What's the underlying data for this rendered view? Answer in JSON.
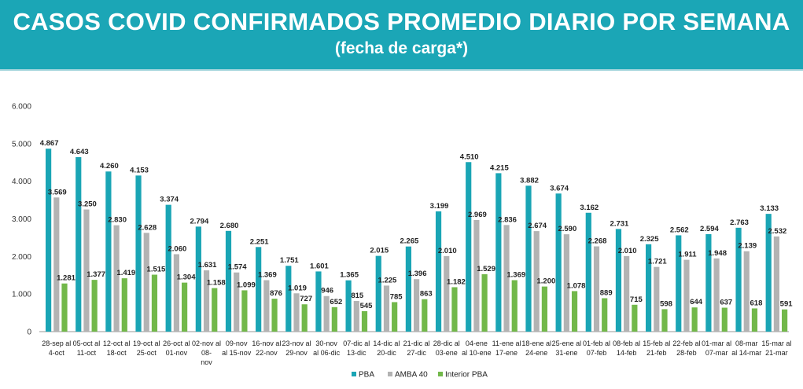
{
  "header": {
    "title": "CASOS COVID CONFIRMADOS PROMEDIO DIARIO POR SEMANA",
    "subtitle": "(fecha de carga*)"
  },
  "chart_data": {
    "type": "bar",
    "title": "CASOS COVID CONFIRMADOS PROMEDIO DIARIO POR SEMANA",
    "subtitle": "(fecha de carga*)",
    "xlabel": "",
    "ylabel": "",
    "ylim": [
      0,
      6000
    ],
    "yticks": [
      "0",
      "1.000",
      "2.000",
      "3.000",
      "4.000",
      "5.000",
      "6.000"
    ],
    "ytick_values": [
      0,
      1000,
      2000,
      3000,
      4000,
      5000,
      6000
    ],
    "categories": [
      [
        "28-sep al",
        "4-oct"
      ],
      [
        "05-oct al",
        "11-oct"
      ],
      [
        "12-oct al",
        "18-oct"
      ],
      [
        "19-oct al",
        "25-oct"
      ],
      [
        "26-oct al",
        "01-nov"
      ],
      [
        "02-nov al",
        "08-",
        "nov"
      ],
      [
        "09-nov",
        "al 15-nov"
      ],
      [
        "16-nov al",
        "22-nov"
      ],
      [
        "23-nov al",
        "29-nov"
      ],
      [
        "30-nov",
        "al 06-dic"
      ],
      [
        "07-dic al",
        "13-dic"
      ],
      [
        "14-dic al",
        "20-dic"
      ],
      [
        "21-dic al",
        "27-dic"
      ],
      [
        "28-dic al",
        "03-ene"
      ],
      [
        "04-ene",
        "al 10-ene"
      ],
      [
        "11-ene al",
        "17-ene"
      ],
      [
        "18-ene al",
        "24-ene"
      ],
      [
        "25-ene al",
        "31-ene"
      ],
      [
        "01-feb al",
        "07-feb"
      ],
      [
        "08-feb al",
        "14-feb"
      ],
      [
        "15-feb al",
        "21-feb"
      ],
      [
        "22-feb al",
        "28-feb"
      ],
      [
        "01-mar al",
        "07-mar"
      ],
      [
        "08-mar",
        "al 14-mar"
      ],
      [
        "15-mar al",
        "21-mar"
      ]
    ],
    "series": [
      {
        "name": "PBA",
        "color": "#1aa5b5",
        "values": [
          4867,
          4643,
          4260,
          4153,
          3374,
          2794,
          2680,
          2251,
          1751,
          1601,
          1365,
          2015,
          2265,
          3199,
          4510,
          4215,
          3882,
          3674,
          3162,
          2731,
          2325,
          2562,
          2594,
          2763,
          3133
        ],
        "labels": [
          "4.867",
          "4.643",
          "4.260",
          "4.153",
          "3.374",
          "2.794",
          "2.680",
          "2.251",
          "1.751",
          "1.601",
          "1.365",
          "2.015",
          "2.265",
          "3.199",
          "4.510",
          "4.215",
          "3.882",
          "3.674",
          "3.162",
          "2.731",
          "2.325",
          "2.562",
          "2.594",
          "2.763",
          "3.133"
        ]
      },
      {
        "name": "AMBA 40",
        "color": "#b3b3b3",
        "values": [
          3569,
          3250,
          2830,
          2628,
          2060,
          1631,
          1574,
          1369,
          1019,
          946,
          815,
          1225,
          1396,
          2010,
          2969,
          2836,
          2674,
          2590,
          2268,
          2010,
          1721,
          1911,
          1948,
          2139,
          2532
        ],
        "labels": [
          "3.569",
          "3.250",
          "2.830",
          "2.628",
          "2.060",
          "1.631",
          "1.574",
          "1.369",
          "1.019",
          "946",
          "815",
          "1.225",
          "1.396",
          "2.010",
          "2.969",
          "2.836",
          "2.674",
          "2.590",
          "2.268",
          "2.010",
          "1.721",
          "1.911",
          "1.948",
          "2.139",
          "2.532"
        ]
      },
      {
        "name": "Interior PBA",
        "color": "#72b84a",
        "values": [
          1281,
          1377,
          1419,
          1515,
          1304,
          1158,
          1099,
          876,
          727,
          652,
          545,
          785,
          863,
          1182,
          1529,
          1369,
          1200,
          1078,
          889,
          715,
          598,
          644,
          637,
          618,
          591
        ],
        "labels": [
          "1.281",
          "1.377",
          "1.419",
          "1.515",
          "1.304",
          "1.158",
          "1.099",
          "876",
          "727",
          "652",
          "545",
          "785",
          "863",
          "1.182",
          "1.529",
          "1.369",
          "1.200",
          "1.078",
          "889",
          "715",
          "598",
          "644",
          "637",
          "618",
          "591"
        ]
      }
    ],
    "legend": [
      {
        "name": "PBA",
        "color": "#1aa5b5"
      },
      {
        "name": "AMBA 40",
        "color": "#b3b3b3"
      },
      {
        "name": "Interior PBA",
        "color": "#72b84a"
      }
    ],
    "legend_position": "bottom-center",
    "grid": false
  }
}
